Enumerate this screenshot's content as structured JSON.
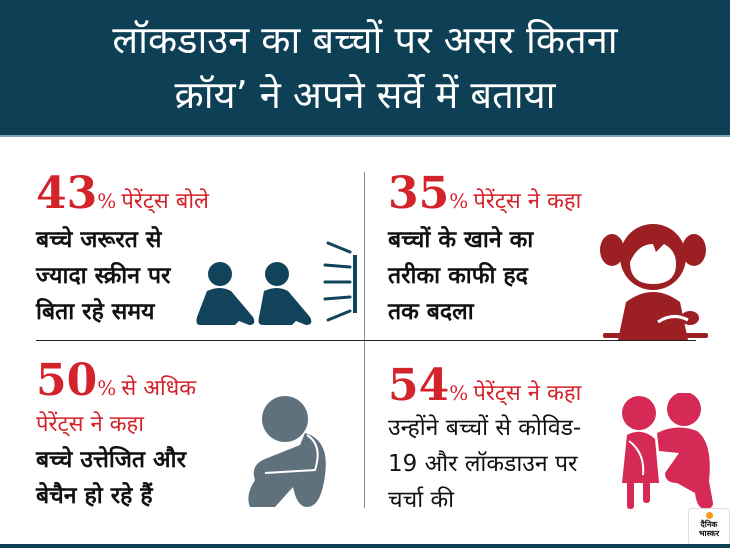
{
  "header": {
    "line1": "लॉकडाउन का बच्चों पर असर कितना",
    "line2": "क्रॉय’ ने अपने सर्वे में बताया"
  },
  "quadrants": [
    {
      "number": "43",
      "percent": "%",
      "label": "पेरेंट्स बोले",
      "lines": [
        "बच्चे जरूरत से",
        "ज्यादा स्क्रीन पर",
        "बिता रहे समय"
      ],
      "icon": "children-watching-screen-icon"
    },
    {
      "number": "35",
      "percent": "%",
      "label": "पेरेंट्स ने कहा",
      "lines": [
        "बच्चों के खाने का",
        "तरीका काफी हद",
        "तक बदला"
      ],
      "icon": "girl-eating-icon"
    },
    {
      "number": "50",
      "percent": "%",
      "label": "से अधिक",
      "label2": "पेरेंट्स ने कहा",
      "lines": [
        "बच्चे उत्तेजित और",
        "बेचैन हो रहे हैं"
      ],
      "icon": "sad-sitting-child-icon"
    },
    {
      "number": "54",
      "percent": "%",
      "label": "पेरेंट्स ने कहा",
      "lines": [
        "उन्होंने बच्चों से कोविड-",
        "19 और लॉकडाउन पर",
        "चर्चा की"
      ],
      "icon": "parent-child-talking-icon"
    }
  ],
  "logo": {
    "line1": "दैनिक",
    "line2": "भास्कर"
  },
  "colors": {
    "header_bg": "#0d3f55",
    "accent_red": "#d3232b",
    "icon_teal": "#11445a",
    "icon_maroon": "#9c1f24",
    "icon_gray": "#5f717c",
    "icon_pink": "#d42a55"
  }
}
